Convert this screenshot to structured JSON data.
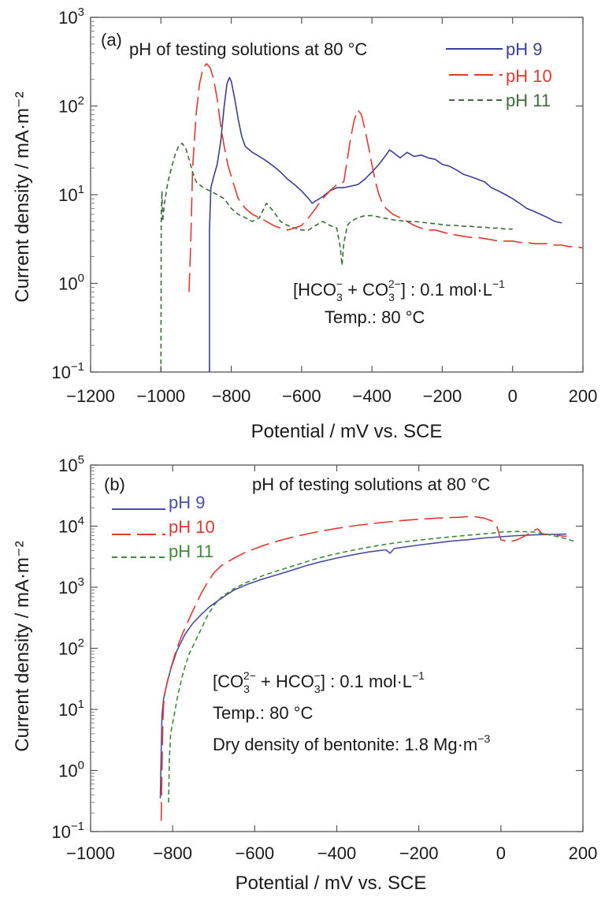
{
  "chart_data": [
    {
      "type": "line",
      "panel_label": "(a)",
      "title": "pH of testing solutions at 80 °C",
      "xlabel": "Potential / mV vs. SCE",
      "ylabel": "Current density / mA·m⁻²",
      "xlim": [
        -1200,
        200
      ],
      "ylim": [
        0.1,
        1000
      ],
      "y_scale": "log",
      "grid": false,
      "legend_position": "top-right",
      "x_ticks": [
        -1200,
        -1000,
        -800,
        -600,
        -400,
        -200,
        0,
        200
      ],
      "x_tick_labels": [
        "−1200",
        "−1000",
        "−800",
        "−600",
        "−400",
        "−200",
        "0",
        "200"
      ],
      "y_ticks": [
        0.1,
        1,
        10,
        100,
        1000
      ],
      "y_tick_labels": [
        {
          "base": "10",
          "exp": "−1"
        },
        {
          "base": "10",
          "exp": "0"
        },
        {
          "base": "10",
          "exp": "1"
        },
        {
          "base": "10",
          "exp": "2"
        },
        {
          "base": "10",
          "exp": "3"
        }
      ],
      "annotation_lines": [
        {
          "parts": [
            {
              "t": "[HCO"
            },
            {
              "t": "3",
              "sub": true
            },
            {
              "t": "−",
              "sup": true
            },
            {
              "t": " + CO"
            },
            {
              "t": "3",
              "sub": true
            },
            {
              "t": "2−",
              "sup": true
            },
            {
              "t": "] : 0.1 mol·L"
            },
            {
              "t": "−1",
              "sup": true
            }
          ]
        },
        {
          "parts": [
            {
              "t": "Temp.: 80 °C"
            }
          ]
        }
      ],
      "series": [
        {
          "name": "pH 9",
          "color": "#3a3f8f",
          "dash": "solid",
          "x": [
            -862,
            -862,
            -858,
            -850,
            -840,
            -830,
            -820,
            -812,
            -805,
            -800,
            -790,
            -780,
            -770,
            -760,
            -740,
            -720,
            -700,
            -680,
            -660,
            -640,
            -620,
            -600,
            -580,
            -570,
            -560,
            -540,
            -520,
            -500,
            -480,
            -460,
            -440,
            -420,
            -400,
            -380,
            -360,
            -350,
            -340,
            -320,
            -300,
            -280,
            -260,
            -240,
            -220,
            -200,
            -180,
            -160,
            -140,
            -120,
            -100,
            -80,
            -60,
            -40,
            -20,
            0,
            20,
            40,
            60,
            80,
            100,
            120,
            140
          ],
          "y": [
            0.1,
            4,
            12,
            16,
            22,
            40,
            100,
            180,
            210,
            190,
            120,
            70,
            45,
            35,
            30,
            27,
            24,
            21,
            18,
            15,
            13,
            11,
            9,
            8,
            8.5,
            9.5,
            11,
            12,
            12,
            12.5,
            13,
            15,
            18,
            22,
            28,
            32,
            30,
            26,
            30,
            27,
            28,
            26,
            25,
            22,
            21,
            19,
            17,
            16,
            15,
            14,
            12,
            11,
            10,
            9,
            8,
            7,
            6.5,
            6,
            5.5,
            5,
            4.8
          ]
        },
        {
          "name": "pH 10",
          "color": "#e2392f",
          "dash": "long-dash",
          "x": [
            -920,
            -915,
            -910,
            -900,
            -890,
            -880,
            -870,
            -860,
            -850,
            -840,
            -830,
            -820,
            -810,
            -800,
            -790,
            -780,
            -760,
            -740,
            -720,
            -700,
            -680,
            -660,
            -640,
            -620,
            -600,
            -580,
            -560,
            -540,
            -520,
            -500,
            -480,
            -470,
            -460,
            -450,
            -440,
            -430,
            -420,
            -410,
            -400,
            -390,
            -380,
            -370,
            -360,
            -340,
            -320,
            -300,
            -280,
            -260,
            -240,
            -220,
            -200,
            -180,
            -160,
            -140,
            -120,
            -100,
            -80,
            -60,
            -40,
            -20,
            0,
            20,
            40,
            60,
            80,
            100,
            120,
            140,
            160,
            180,
            200
          ],
          "y": [
            0.8,
            3,
            20,
            80,
            180,
            270,
            300,
            270,
            200,
            120,
            60,
            35,
            22,
            16,
            12,
            9,
            7,
            6,
            5.5,
            5,
            4.5,
            4.2,
            4,
            4.2,
            4.5,
            5.5,
            7,
            9,
            11,
            13,
            14,
            25,
            45,
            70,
            90,
            80,
            55,
            35,
            22,
            14,
            10,
            8,
            7,
            6,
            5.5,
            5,
            4.5,
            4.2,
            4,
            4,
            3.8,
            3.6,
            3.5,
            3.4,
            3.3,
            3.3,
            3.2,
            3.1,
            3,
            3,
            3,
            2.9,
            2.9,
            2.8,
            2.8,
            2.8,
            2.7,
            2.7,
            2.6,
            2.6,
            2.5
          ]
        },
        {
          "name": "pH 11",
          "color": "#3e6b3a",
          "dash": "short-dash",
          "x": [
            -1000,
            -999,
            -997,
            -995,
            -990,
            -980,
            -970,
            -960,
            -950,
            -940,
            -930,
            -920,
            -910,
            -900,
            -880,
            -860,
            -840,
            -820,
            -800,
            -780,
            -760,
            -740,
            -720,
            -700,
            -680,
            -660,
            -640,
            -620,
            -600,
            -580,
            -560,
            -540,
            -520,
            -500,
            -490,
            -485,
            -480,
            -470,
            -460,
            -440,
            -420,
            -400,
            -380,
            -360,
            -340,
            -320,
            -300,
            -280,
            -260,
            -240,
            -220,
            -200,
            -180,
            -160,
            -140,
            -120,
            -100,
            -80,
            -60,
            -40,
            -20,
            0
          ],
          "y": [
            0.1,
            6,
            11,
            5,
            8,
            14,
            20,
            28,
            35,
            38,
            34,
            25,
            18,
            14,
            12,
            11,
            10,
            9,
            7,
            6,
            5.5,
            5,
            5.5,
            8,
            6.5,
            5,
            4.5,
            4.2,
            4,
            4,
            4.5,
            5,
            4.5,
            4.2,
            2.5,
            1.6,
            2.8,
            4.5,
            5,
            5.5,
            5.8,
            5.8,
            5.6,
            5.4,
            5.2,
            5.1,
            5,
            5,
            4.9,
            4.8,
            4.7,
            4.6,
            4.5,
            4.5,
            4.4,
            4.4,
            4.3,
            4.3,
            4.2,
            4.2,
            4.1,
            4.1
          ]
        }
      ]
    },
    {
      "type": "line",
      "panel_label": "(b)",
      "title": "pH of testing solutions at 80 °C",
      "xlabel": "Potential / mV vs. SCE",
      "ylabel": "Current density / mA·m⁻²",
      "xlim": [
        -1000,
        200
      ],
      "ylim": [
        0.1,
        100000
      ],
      "y_scale": "log",
      "grid": false,
      "legend_position": "top-left",
      "x_ticks": [
        -1000,
        -800,
        -600,
        -400,
        -200,
        0,
        200
      ],
      "x_tick_labels": [
        "−1000",
        "−800",
        "−600",
        "−400",
        "−200",
        "0",
        "200"
      ],
      "y_ticks": [
        0.1,
        1,
        10,
        100,
        1000,
        10000,
        100000
      ],
      "y_tick_labels": [
        {
          "base": "10",
          "exp": "−1"
        },
        {
          "base": "10",
          "exp": "0"
        },
        {
          "base": "10",
          "exp": "1"
        },
        {
          "base": "10",
          "exp": "2"
        },
        {
          "base": "10",
          "exp": "3"
        },
        {
          "base": "10",
          "exp": "4"
        },
        {
          "base": "10",
          "exp": "5"
        }
      ],
      "annotation_lines": [
        {
          "parts": [
            {
              "t": "[CO"
            },
            {
              "t": "3",
              "sub": true
            },
            {
              "t": "2−",
              "sup": true
            },
            {
              "t": " + HCO"
            },
            {
              "t": "3",
              "sub": true
            },
            {
              "t": "−",
              "sup": true
            },
            {
              "t": "] : 0.1 mol·L"
            },
            {
              "t": "−1",
              "sup": true
            }
          ]
        },
        {
          "parts": [
            {
              "t": "Temp.: 80 °C"
            }
          ]
        },
        {
          "parts": [
            {
              "t": "Dry density of bentonite: 1.8 Mg·m"
            },
            {
              "t": "−3",
              "sup": true
            }
          ]
        }
      ],
      "series": [
        {
          "name": "pH 9",
          "color": "#4a4ea0",
          "dash": "solid",
          "x": [
            -830,
            -828,
            -826,
            -822,
            -815,
            -805,
            -790,
            -770,
            -750,
            -730,
            -710,
            -690,
            -670,
            -650,
            -620,
            -590,
            -560,
            -520,
            -480,
            -440,
            -400,
            -360,
            -320,
            -280,
            -270,
            -260,
            -240,
            -200,
            -160,
            -120,
            -80,
            -40,
            0,
            40,
            80,
            120,
            160
          ],
          "y": [
            0.35,
            2,
            8,
            15,
            25,
            45,
            90,
            170,
            260,
            360,
            480,
            600,
            740,
            900,
            1100,
            1300,
            1500,
            1800,
            2200,
            2600,
            3000,
            3400,
            3800,
            4100,
            3600,
            4300,
            4500,
            4900,
            5300,
            5700,
            6000,
            6400,
            6700,
            7000,
            7200,
            7300,
            7400
          ]
        },
        {
          "name": "pH 10",
          "color": "#e2392f",
          "dash": "long-dash",
          "x": [
            -828,
            -826,
            -824,
            -822,
            -818,
            -810,
            -800,
            -790,
            -775,
            -760,
            -745,
            -730,
            -715,
            -700,
            -680,
            -650,
            -620,
            -580,
            -540,
            -500,
            -450,
            -400,
            -350,
            -300,
            -250,
            -200,
            -150,
            -100,
            -70,
            -40,
            -20,
            -10,
            0,
            20,
            40,
            60,
            80,
            90,
            100,
            120,
            140,
            160
          ],
          "y": [
            0.15,
            1,
            6,
            12,
            20,
            35,
            60,
            100,
            180,
            300,
            500,
            800,
            1200,
            1700,
            2300,
            3000,
            3800,
            4800,
            5800,
            6800,
            8000,
            9200,
            10300,
            11300,
            12200,
            13000,
            13600,
            14000,
            14500,
            13500,
            12000,
            10000,
            6000,
            5500,
            6000,
            7000,
            8500,
            9000,
            7500,
            7200,
            7000,
            6800
          ]
        },
        {
          "name": "pH 11",
          "color": "#3e8a3a",
          "dash": "short-dash",
          "x": [
            -810,
            -808,
            -805,
            -800,
            -795,
            -790,
            -785,
            -778,
            -770,
            -760,
            -745,
            -730,
            -715,
            -700,
            -680,
            -650,
            -620,
            -580,
            -540,
            -500,
            -460,
            -420,
            -380,
            -340,
            -300,
            -260,
            -220,
            -180,
            -140,
            -100,
            -60,
            -20,
            0,
            40,
            80,
            120,
            160,
            180
          ],
          "y": [
            0.3,
            1.5,
            4,
            6,
            9,
            14,
            20,
            32,
            50,
            80,
            130,
            210,
            340,
            500,
            700,
            950,
            1200,
            1550,
            1900,
            2300,
            2800,
            3300,
            3800,
            4300,
            4800,
            5300,
            5700,
            6100,
            6500,
            6900,
            7300,
            7700,
            8000,
            8200,
            8000,
            7200,
            6200,
            5600
          ]
        }
      ]
    }
  ]
}
